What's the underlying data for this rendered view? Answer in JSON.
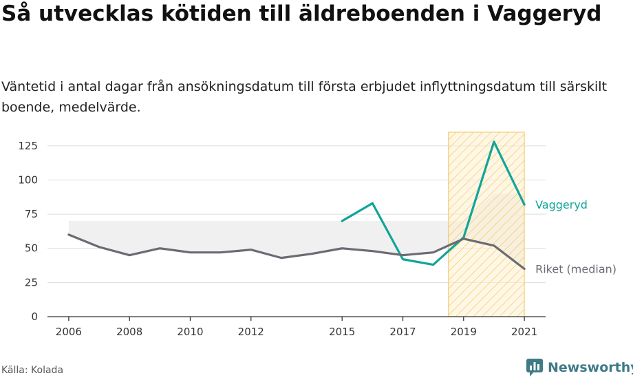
{
  "header": {
    "title": "Så utvecklas kötiden till äldreboenden i Vaggeryd",
    "subtitle": "Väntetid i antal dagar från ansökningsdatum till första erbjudet inflyttningsdatum till särskilt boende, medelvärde."
  },
  "footer": {
    "source": "Källa: Kolada",
    "brand": "Newsworthy"
  },
  "colors": {
    "vaggeryd": "#10a598",
    "riket": "#6b6b73",
    "band": "#f0f0f0",
    "highlight_fill": "#fdf1d2",
    "highlight_stroke": "#f3c55a"
  },
  "chart_data": {
    "type": "line",
    "ylim": [
      0,
      135
    ],
    "yticks": [
      0,
      25,
      50,
      75,
      100,
      125
    ],
    "xticks": [
      2006,
      2008,
      2010,
      2012,
      2015,
      2017,
      2019,
      2021
    ],
    "xlim": [
      2005.3,
      2021.7
    ],
    "highlight_range": [
      2018.5,
      2021
    ],
    "series": [
      {
        "name": "Vaggeryd",
        "x": [
          2015,
          2016,
          2017,
          2018,
          2019,
          2020,
          2021
        ],
        "values": [
          70,
          83,
          42,
          38,
          58,
          128,
          82
        ]
      },
      {
        "name": "Riket (median)",
        "x": [
          2006,
          2007,
          2008,
          2009,
          2010,
          2011,
          2012,
          2013,
          2014,
          2015,
          2016,
          2017,
          2018,
          2019,
          2020,
          2021
        ],
        "values": [
          60,
          51,
          45,
          50,
          47,
          47,
          49,
          43,
          46,
          50,
          48,
          45,
          47,
          57,
          52,
          35
        ]
      }
    ],
    "band": {
      "x": [
        2006,
        2007,
        2008,
        2009,
        2010,
        2011,
        2012,
        2013,
        2014,
        2015,
        2016,
        2017,
        2018,
        2019,
        2020,
        2021
      ],
      "upper": [
        70,
        70,
        70,
        70,
        70,
        70,
        70,
        70,
        70,
        70,
        70,
        70,
        70,
        70,
        90,
        90
      ]
    }
  }
}
